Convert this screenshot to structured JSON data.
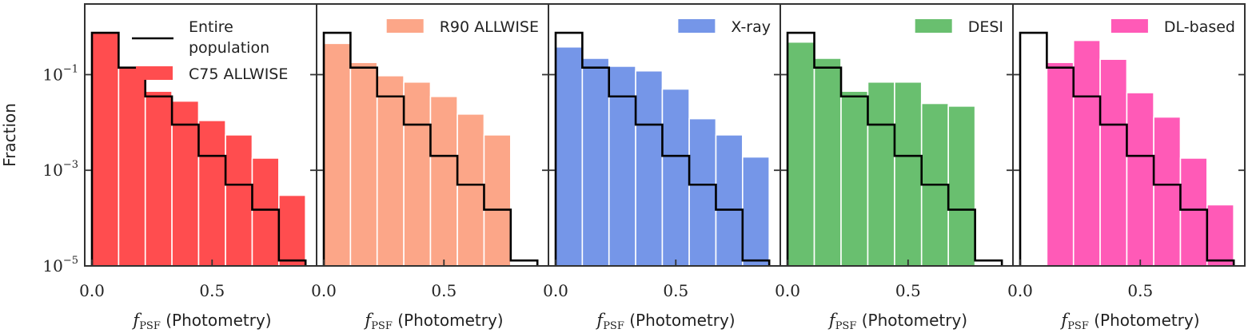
{
  "chart_data": {
    "type": "bar",
    "description_scale": "log",
    "y_axis": {
      "label": "Fraction",
      "scale": "log",
      "ylim": [
        1e-05,
        3.0
      ],
      "ticks": [
        0.1,
        0.001,
        1e-05
      ],
      "tick_labels": [
        {
          "base": "10",
          "exp": "−1"
        },
        {
          "base": "10",
          "exp": "−3"
        },
        {
          "base": "10",
          "exp": "−5"
        }
      ]
    },
    "x_axis": {
      "label_prefix": "f",
      "label_subscript": "PSF",
      "label_suffix": " (Photometry)",
      "xlim": [
        -0.03,
        0.935
      ],
      "ticks": [
        0.0,
        0.5
      ],
      "tick_labels": [
        "0.0",
        "0.5"
      ]
    },
    "bin_edges": [
      0.0,
      0.111,
      0.222,
      0.333,
      0.444,
      0.556,
      0.667,
      0.778,
      0.889
    ],
    "entire_population": {
      "name_line1": "Entire",
      "name_line2": "population",
      "values": [
        0.75,
        0.14,
        0.035,
        0.009,
        0.002,
        0.0005,
        0.00015,
        1.3e-05
      ],
      "color": "#000000"
    },
    "panels": [
      {
        "name": "C75 ALLWISE",
        "color": "#ff4d4f",
        "values": [
          0.75,
          0.14,
          0.045,
          0.028,
          0.011,
          0.0055,
          0.0018,
          0.0003
        ],
        "show_entire_in_legend": true
      },
      {
        "name": "R90 ALLWISE",
        "color": "#fca688",
        "values": [
          0.45,
          0.18,
          0.095,
          0.07,
          0.035,
          0.015,
          0.0055,
          0.0
        ],
        "show_entire_in_legend": false
      },
      {
        "name": "X-ray",
        "color": "#7596e8",
        "values": [
          0.38,
          0.22,
          0.15,
          0.12,
          0.05,
          0.012,
          0.0055,
          0.0019
        ],
        "show_entire_in_legend": false
      },
      {
        "name": "DESI",
        "color": "#69bf6f",
        "values": [
          0.48,
          0.22,
          0.045,
          0.07,
          0.07,
          0.025,
          0.022,
          0.0
        ],
        "show_entire_in_legend": false
      },
      {
        "name": "DL-based",
        "color": "#ff5ab7",
        "values": [
          0.0,
          0.18,
          0.52,
          0.21,
          0.042,
          0.013,
          0.0018,
          0.00019
        ],
        "show_entire_in_legend": false
      }
    ]
  }
}
